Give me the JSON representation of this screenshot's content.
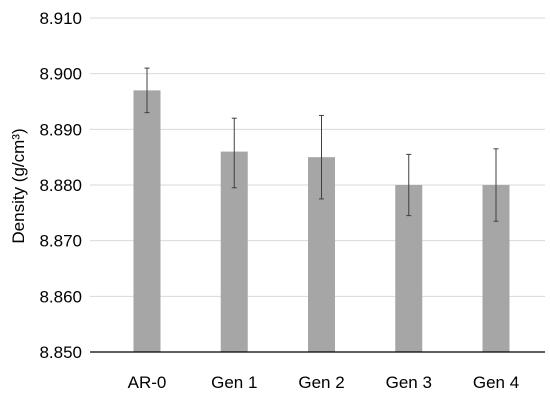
{
  "chart_data": {
    "type": "bar",
    "title": "",
    "xlabel": "",
    "ylabel": "Density (g/cm³)",
    "categories": [
      "AR-0",
      "Gen 1",
      "Gen 2",
      "Gen 3",
      "Gen 4"
    ],
    "values": [
      8.897,
      8.886,
      8.885,
      8.88,
      8.88
    ],
    "error_upper": [
      8.901,
      8.892,
      8.8925,
      8.8855,
      8.8865
    ],
    "error_lower": [
      8.893,
      8.8795,
      8.8775,
      8.8745,
      8.8735
    ],
    "ylim": [
      8.85,
      8.91
    ],
    "yticks": [
      "8.850",
      "8.860",
      "8.870",
      "8.880",
      "8.890",
      "8.900",
      "8.910"
    ],
    "grid": true,
    "legend": "none",
    "colors": {
      "bar": "#a6a6a6",
      "grid": "#d9d9d9",
      "error_bar": "#404040",
      "axis": "#000000"
    }
  }
}
